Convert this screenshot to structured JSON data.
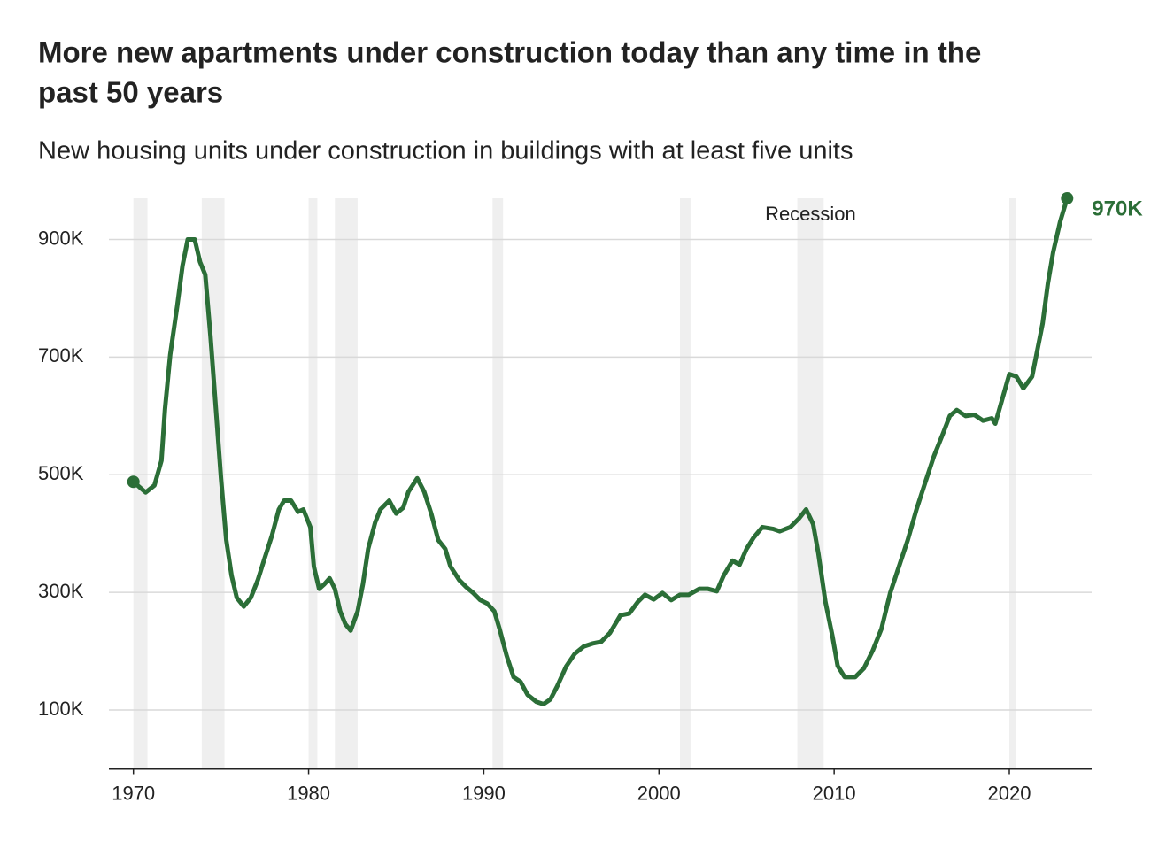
{
  "chart_data": {
    "type": "line",
    "title": [
      "More new apartments under construction today than any time in the",
      "past 50 years"
    ],
    "subtitle": "New housing units under construction in buildings with at least five units",
    "color": "#2b6e37",
    "x": [
      1970.0,
      1970.7,
      1971.2,
      1971.6,
      1971.8,
      1972.1,
      1972.5,
      1972.8,
      1973.1,
      1973.5,
      1973.8,
      1974.1,
      1974.4,
      1974.7,
      1975.0,
      1975.3,
      1975.6,
      1975.9,
      1976.3,
      1976.7,
      1977.1,
      1977.5,
      1977.9,
      1978.3,
      1978.6,
      1979.0,
      1979.4,
      1979.7,
      1980.1,
      1980.3,
      1980.6,
      1980.9,
      1981.2,
      1981.5,
      1981.8,
      1982.1,
      1982.4,
      1982.8,
      1983.1,
      1983.4,
      1983.8,
      1984.1,
      1984.6,
      1985.0,
      1985.4,
      1985.7,
      1986.2,
      1986.6,
      1987.0,
      1987.4,
      1987.8,
      1988.1,
      1988.6,
      1989.0,
      1989.4,
      1989.8,
      1990.2,
      1990.6,
      1990.9,
      1991.3,
      1991.7,
      1992.1,
      1992.5,
      1993.0,
      1993.4,
      1993.8,
      1994.2,
      1994.7,
      1995.2,
      1995.7,
      1996.2,
      1996.7,
      1997.2,
      1997.8,
      1998.3,
      1998.8,
      1999.2,
      1999.7,
      2000.2,
      2000.7,
      2001.2,
      2001.7,
      2002.3,
      2002.8,
      2003.3,
      2003.7,
      2004.2,
      2004.6,
      2005.0,
      2005.4,
      2005.9,
      2006.5,
      2006.9,
      2007.5,
      2008.0,
      2008.4,
      2008.8,
      2009.1,
      2009.5,
      2009.9,
      2010.2,
      2010.6,
      2011.2,
      2011.7,
      2012.2,
      2012.7,
      2013.2,
      2013.7,
      2014.2,
      2014.7,
      2015.2,
      2015.7,
      2016.2,
      2016.6,
      2017.0,
      2017.5,
      2018.0,
      2018.5,
      2019.0,
      2019.2,
      2019.6,
      2020.0,
      2020.4,
      2020.8,
      2021.3,
      2021.6,
      2021.9,
      2022.2,
      2022.5,
      2022.9,
      2023.3
    ],
    "values": [
      488000,
      470000,
      482000,
      524000,
      611000,
      704000,
      787000,
      855000,
      900000,
      900000,
      862000,
      840000,
      735000,
      615000,
      494000,
      389000,
      329000,
      291000,
      276000,
      291000,
      321000,
      359000,
      396000,
      441000,
      456000,
      456000,
      437000,
      441000,
      411000,
      344000,
      306000,
      314000,
      324000,
      306000,
      268000,
      246000,
      235000,
      268000,
      314000,
      374000,
      419000,
      441000,
      456000,
      434000,
      444000,
      471000,
      494000,
      471000,
      434000,
      389000,
      374000,
      344000,
      321000,
      309000,
      299000,
      287000,
      281000,
      268000,
      238000,
      193000,
      156000,
      148000,
      126000,
      114000,
      110000,
      118000,
      141000,
      174000,
      196000,
      208000,
      213000,
      216000,
      231000,
      261000,
      264000,
      284000,
      296000,
      288000,
      299000,
      287000,
      296000,
      296000,
      306000,
      306000,
      302000,
      329000,
      354000,
      347000,
      374000,
      393000,
      411000,
      408000,
      404000,
      411000,
      426000,
      441000,
      416000,
      366000,
      284000,
      226000,
      175000,
      156000,
      156000,
      171000,
      201000,
      238000,
      299000,
      344000,
      389000,
      441000,
      487000,
      532000,
      569000,
      600000,
      610000,
      600000,
      602000,
      592000,
      596000,
      587000,
      629000,
      671000,
      667000,
      647000,
      667000,
      712000,
      757000,
      825000,
      878000,
      930000,
      970000
    ],
    "end_label": "970K",
    "recession_label": "Recession",
    "recessions": [
      [
        1970.0,
        1970.8
      ],
      [
        1973.9,
        1975.2
      ],
      [
        1980.0,
        1980.5
      ],
      [
        1981.5,
        1982.8
      ],
      [
        1990.5,
        1991.1
      ],
      [
        2001.2,
        2001.8
      ],
      [
        2007.9,
        2009.4
      ],
      [
        2020.0,
        2020.4
      ]
    ],
    "xlim": [
      1968.6,
      2024.7
    ],
    "xticks": [
      1970,
      1980,
      1990,
      2000,
      2010,
      2020
    ],
    "ylim": [
      0,
      970000
    ],
    "yticks": [
      {
        "value": 100000,
        "label": "100K"
      },
      {
        "value": 300000,
        "label": "300K"
      },
      {
        "value": 500000,
        "label": "500K"
      },
      {
        "value": 700000,
        "label": "700K"
      },
      {
        "value": 900000,
        "label": "900K"
      }
    ],
    "grid": true
  }
}
